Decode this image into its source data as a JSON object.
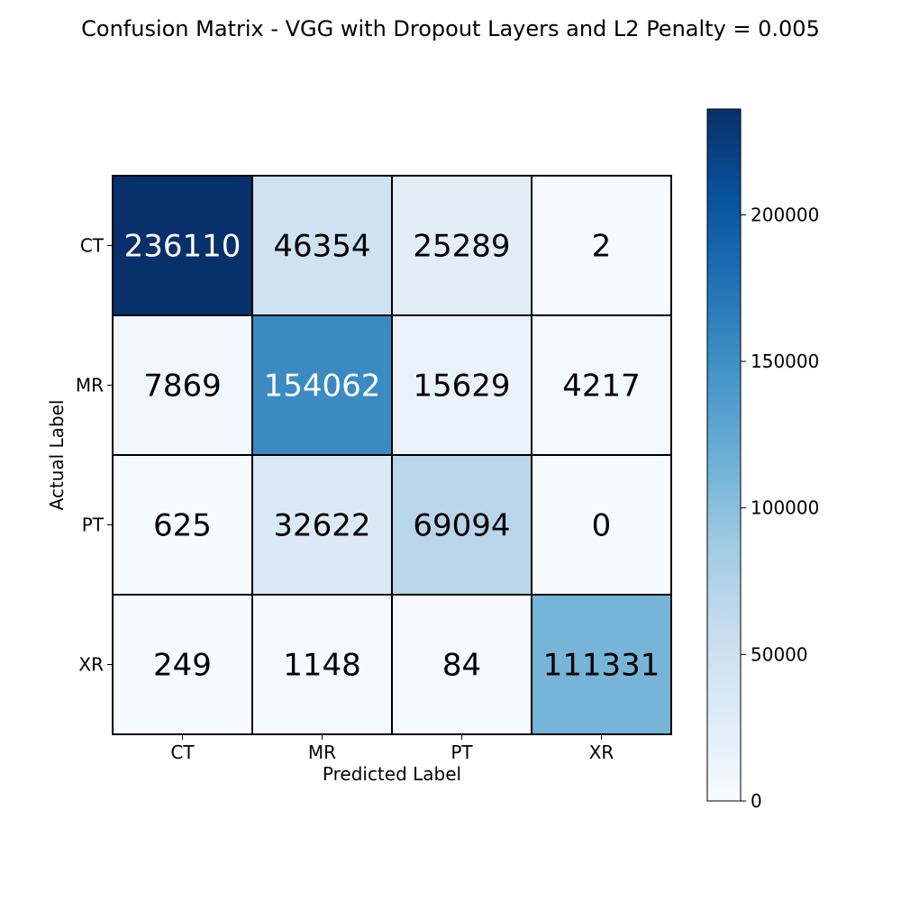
{
  "chart_data": {
    "type": "heatmap",
    "title": "Confusion Matrix - VGG with Dropout Layers and L2 Penalty = 0.005",
    "xlabel": "Predicted Label",
    "ylabel": "Actual Label",
    "x_categories": [
      "CT",
      "MR",
      "PT",
      "XR"
    ],
    "y_categories": [
      "CT",
      "MR",
      "PT",
      "XR"
    ],
    "values": [
      [
        236110,
        46354,
        25289,
        2
      ],
      [
        7869,
        154062,
        15629,
        4217
      ],
      [
        625,
        32622,
        69094,
        0
      ],
      [
        249,
        1148,
        84,
        111331
      ]
    ],
    "colormap": "Blues",
    "colorbar": {
      "range": [
        0,
        236110
      ],
      "ticks": [
        0,
        50000,
        100000,
        150000,
        200000
      ],
      "tick_labels": [
        "0",
        "50000",
        "100000",
        "150000",
        "200000"
      ]
    },
    "colors": {
      "low": "#f7fbff",
      "high": "#08306b",
      "text_dark": "#000000",
      "text_light": "#ffffff",
      "grid": "#000000"
    }
  }
}
